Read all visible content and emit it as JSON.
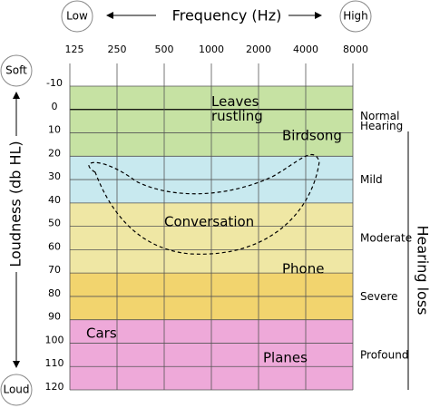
{
  "chart_data": {
    "type": "audiogram",
    "title": "Frequency (Hz)",
    "x_start_label": "Low",
    "x_end_label": "High",
    "y_label": "Loudness (db HL)",
    "y_start_label": "Soft",
    "y_end_label": "Loud",
    "xscale": "log",
    "xlim": [
      125,
      8000
    ],
    "xticks": [
      125,
      250,
      500,
      1000,
      2000,
      4000,
      8000
    ],
    "ylim": [
      -10,
      120
    ],
    "yticks": [
      -10,
      0,
      10,
      20,
      30,
      40,
      50,
      60,
      70,
      80,
      90,
      100,
      110,
      120
    ],
    "bands_title": "Hearing loss",
    "bands": [
      {
        "name": "Normal Hearing",
        "from": -10,
        "to": 20,
        "color": "#c6e2a3"
      },
      {
        "name": "Mild",
        "from": 20,
        "to": 40,
        "color": "#c8e9ef"
      },
      {
        "name": "Moderate",
        "from": 40,
        "to": 70,
        "color": "#efe7a4"
      },
      {
        "name": "Severe",
        "from": 70,
        "to": 90,
        "color": "#f2d46e"
      },
      {
        "name": "Profound",
        "from": 90,
        "to": 120,
        "color": "#eea9d9"
      }
    ],
    "annotations": [
      "Leaves rustling",
      "Birdsong",
      "Conversation",
      "Phone",
      "Cars",
      "Planes"
    ]
  }
}
